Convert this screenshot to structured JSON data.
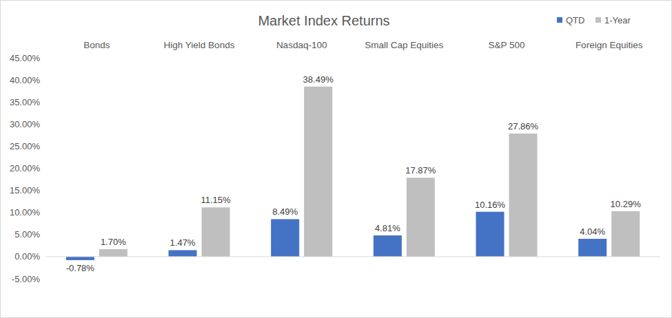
{
  "chart_data": {
    "type": "bar",
    "title": "Market Index Returns",
    "categories": [
      "Bonds",
      "High Yield Bonds",
      "Nasdaq-100",
      "Small Cap Equities",
      "S&P 500",
      "Foreign Equities"
    ],
    "series": [
      {
        "name": "QTD",
        "color": "#4472c4",
        "values": [
          -0.78,
          1.47,
          8.49,
          4.81,
          10.16,
          4.04
        ],
        "value_labels": [
          "-0.78%",
          "1.47%",
          "8.49%",
          "4.81%",
          "10.16%",
          "4.04%"
        ]
      },
      {
        "name": "1-Year",
        "color": "#bfbfbf",
        "values": [
          1.7,
          11.15,
          38.49,
          17.87,
          27.86,
          10.29
        ],
        "value_labels": [
          "1.70%",
          "11.15%",
          "38.49%",
          "17.87%",
          "27.86%",
          "10.29%"
        ]
      }
    ],
    "ylim": [
      -5,
      45
    ],
    "yticks": [
      {
        "value": -5,
        "label": "-5.00%"
      },
      {
        "value": 0,
        "label": "0.00%"
      },
      {
        "value": 5,
        "label": "5.00%"
      },
      {
        "value": 10,
        "label": "10.00%"
      },
      {
        "value": 15,
        "label": "15.00%"
      },
      {
        "value": 20,
        "label": "20.00%"
      },
      {
        "value": 25,
        "label": "25.00%"
      },
      {
        "value": 30,
        "label": "30.00%"
      },
      {
        "value": 35,
        "label": "35.00%"
      },
      {
        "value": 40,
        "label": "40.00%"
      },
      {
        "value": 45,
        "label": "45.00%"
      }
    ],
    "grid": false,
    "legend": "top-right",
    "data_labels": true
  }
}
